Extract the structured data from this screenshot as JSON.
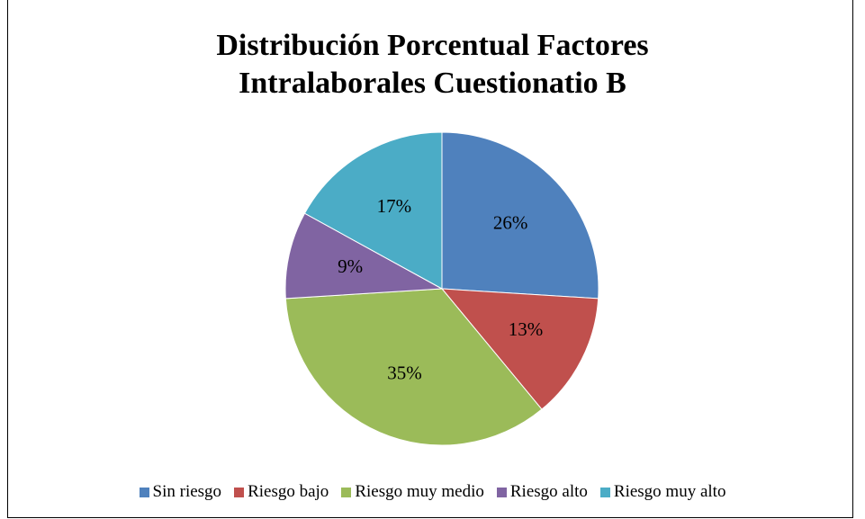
{
  "chart_data": {
    "type": "pie",
    "title": "Distribución Porcentual Factores Intralaborales Cuestionatio B",
    "categories": [
      "Sin riesgo",
      "Riesgo bajo",
      "Riesgo muy medio",
      "Riesgo alto",
      "Riesgo muy alto"
    ],
    "values": [
      26,
      13,
      35,
      9,
      17
    ],
    "value_labels": [
      "26%",
      "13%",
      "35%",
      "9%",
      "17%"
    ],
    "colors": [
      "#4f81bd",
      "#c0504d",
      "#9bbb59",
      "#8064a2",
      "#4bacc6"
    ],
    "legend": "bottom"
  }
}
